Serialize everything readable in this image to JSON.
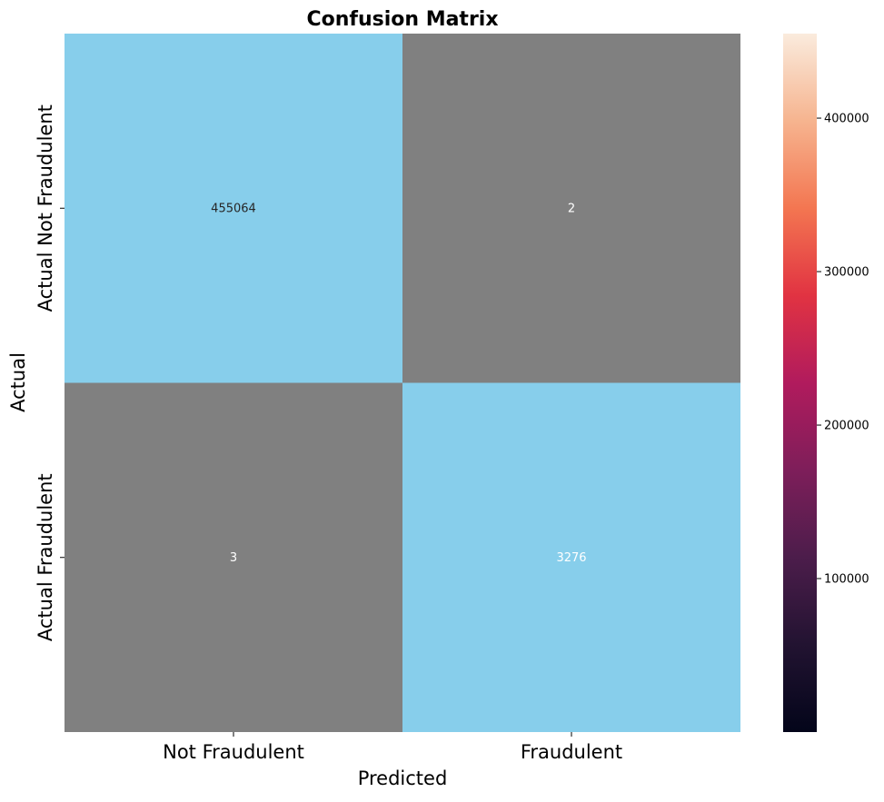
{
  "chart_data": {
    "type": "heatmap",
    "title": "Confusion Matrix",
    "xlabel": "Predicted",
    "ylabel": "Actual",
    "x_categories": [
      "Not Fraudulent",
      "Fraudulent"
    ],
    "y_categories": [
      "Actual Not Fraudulent",
      "Actual Fraudulent"
    ],
    "values": [
      [
        455064,
        2
      ],
      [
        3,
        3276
      ]
    ],
    "cell_colors": [
      [
        "#87ceeb",
        "#808080"
      ],
      [
        "#808080",
        "#87ceeb"
      ]
    ],
    "cell_text_colors": [
      [
        "#262626",
        "#ffffff"
      ],
      [
        "#ffffff",
        "#ffffff"
      ]
    ],
    "colorbar": {
      "range": [
        2,
        455064
      ],
      "ticks": [
        100000,
        200000,
        300000,
        400000
      ],
      "tick_labels": [
        "100000",
        "200000",
        "300000",
        "400000"
      ],
      "colormap": "rocket",
      "colors": [
        "#03051a",
        "#221331",
        "#4c1d4b",
        "#7e1e5a",
        "#b11b5d",
        "#e13342",
        "#f37651",
        "#f6b48f",
        "#faebdd"
      ]
    },
    "grid": false,
    "legend": "colorbar-right"
  }
}
